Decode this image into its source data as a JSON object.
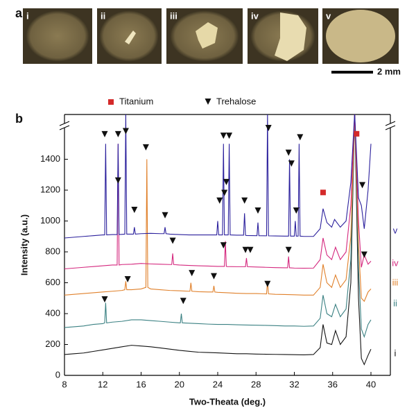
{
  "panel_a": {
    "label": "a",
    "images": [
      "i",
      "ii",
      "iii",
      "iv",
      "v"
    ],
    "scale_bar": "2 mm"
  },
  "chart_data": {
    "type": "line",
    "label": "b",
    "xlabel": "Two-Theata (deg.)",
    "ylabel": "Intensity (a.u.)",
    "xlim": [
      8,
      42
    ],
    "ylim": [
      0,
      1690
    ],
    "xticks": [
      8,
      12,
      16,
      20,
      24,
      28,
      32,
      36,
      40
    ],
    "yticks": [
      0,
      200,
      400,
      600,
      800,
      1000,
      1200,
      1400
    ],
    "series": [
      {
        "name": "i",
        "color": "#111111",
        "x": [
          8,
          9,
          10,
          11,
          12,
          13,
          14,
          15,
          16,
          17,
          18,
          19,
          20,
          21,
          22,
          23,
          24,
          25,
          26,
          27,
          28,
          29,
          30,
          31,
          32,
          33,
          34,
          34.7,
          35,
          35.4,
          35.9,
          36.3,
          36.8,
          37.4,
          37.9,
          38.3,
          38.7,
          39,
          39.3,
          39.7,
          40
        ],
        "values": [
          135,
          140,
          145,
          155,
          165,
          175,
          185,
          195,
          190,
          185,
          178,
          170,
          162,
          156,
          150,
          148,
          146,
          143,
          140,
          140,
          138,
          137,
          136,
          135,
          134,
          133,
          135,
          180,
          330,
          210,
          200,
          290,
          200,
          250,
          600,
          1700,
          500,
          110,
          70,
          130,
          170
        ]
      },
      {
        "name": "ii",
        "color": "#3a8082",
        "x": [
          8,
          9,
          10,
          11,
          12,
          12.2,
          12.3,
          12.4,
          13,
          14,
          15,
          16,
          17,
          18,
          19,
          20,
          20.1,
          20.2,
          20.3,
          21,
          22,
          23,
          24,
          25,
          26,
          27,
          28,
          29,
          30,
          31,
          32,
          33,
          34,
          34.7,
          35,
          35.4,
          35.9,
          36.3,
          36.8,
          37.4,
          37.9,
          38.3,
          38.7,
          39,
          39.3,
          39.7,
          40
        ],
        "values": [
          310,
          315,
          320,
          330,
          335,
          340,
          470,
          340,
          345,
          350,
          360,
          360,
          355,
          350,
          345,
          340,
          340,
          400,
          340,
          338,
          335,
          332,
          330,
          330,
          328,
          326,
          325,
          324,
          322,
          320,
          320,
          318,
          320,
          370,
          520,
          400,
          380,
          460,
          380,
          430,
          750,
          1700,
          700,
          300,
          250,
          330,
          360
        ]
      },
      {
        "name": "iii",
        "color": "#e0802a",
        "x": [
          8,
          9,
          10,
          11,
          12,
          13,
          14,
          14.3,
          14.4,
          14.5,
          15,
          16,
          16.5,
          16.6,
          16.7,
          17,
          18,
          19,
          20,
          21,
          21.1,
          21.2,
          21.3,
          22,
          23,
          23.5,
          23.6,
          23.7,
          24,
          25,
          26,
          27,
          28,
          29,
          29.1,
          29.2,
          29.3,
          30,
          31,
          32,
          33,
          34,
          34.7,
          35,
          35.4,
          35.9,
          36.3,
          36.8,
          37.4,
          37.9,
          38.3,
          38.7,
          39,
          39.3,
          39.7,
          40
        ],
        "values": [
          520,
          525,
          530,
          535,
          540,
          545,
          550,
          555,
          610,
          555,
          555,
          560,
          570,
          1400,
          570,
          560,
          555,
          550,
          548,
          545,
          545,
          600,
          545,
          542,
          540,
          540,
          580,
          540,
          538,
          535,
          532,
          530,
          530,
          528,
          528,
          610,
          528,
          525,
          524,
          522,
          520,
          520,
          570,
          720,
          600,
          570,
          650,
          570,
          620,
          900,
          1700,
          850,
          500,
          480,
          540,
          560
        ]
      },
      {
        "name": "iv",
        "color": "#d4267d",
        "x": [
          8,
          9,
          10,
          11,
          12,
          13,
          13.5,
          13.6,
          13.7,
          14,
          15,
          16,
          17,
          18,
          19,
          19.2,
          19.3,
          19.4,
          20,
          21,
          22,
          23,
          24,
          24.7,
          24.8,
          24.9,
          25,
          26,
          26.9,
          27,
          27.1,
          28,
          29,
          30,
          31,
          31.3,
          31.4,
          31.5,
          32,
          33,
          34,
          34.7,
          35,
          35.4,
          35.9,
          36.3,
          36.8,
          37.4,
          37.9,
          38.3,
          38.7,
          39,
          39.3,
          39.7,
          40
        ],
        "values": [
          690,
          695,
          700,
          705,
          710,
          715,
          715,
          1500,
          715,
          718,
          720,
          725,
          722,
          720,
          718,
          718,
          790,
          718,
          715,
          712,
          710,
          708,
          706,
          706,
          870,
          706,
          705,
          704,
          704,
          760,
          704,
          702,
          700,
          698,
          697,
          697,
          770,
          697,
          695,
          694,
          695,
          750,
          890,
          780,
          750,
          830,
          750,
          800,
          1100,
          1700,
          1000,
          700,
          780,
          720,
          740
        ]
      },
      {
        "name": "v",
        "color": "#2a1f9c",
        "x": [
          8,
          9,
          10,
          11,
          12,
          12.2,
          12.3,
          12.4,
          13,
          13.5,
          13.6,
          13.7,
          14.3,
          14.4,
          14.5,
          15.2,
          15.3,
          15.4,
          16,
          17,
          18,
          18.4,
          18.5,
          18.6,
          19,
          20,
          21,
          22,
          23,
          23.9,
          24,
          24.1,
          24.5,
          24.6,
          24.7,
          25.1,
          25.2,
          25.3,
          26,
          26.7,
          26.8,
          26.9,
          27,
          28.1,
          28.2,
          28.3,
          29.1,
          29.2,
          29.3,
          30,
          31,
          31.4,
          31.5,
          31.6,
          32,
          32.1,
          32.2,
          32.4,
          32.5,
          32.6,
          33,
          34,
          34.7,
          35,
          35.4,
          35.9,
          36.2,
          36.8,
          37.4,
          37.9,
          38.3,
          38.7,
          39,
          39.3,
          39.7,
          40
        ],
        "values": [
          890,
          895,
          900,
          905,
          910,
          910,
          1500,
          910,
          912,
          912,
          1500,
          912,
          915,
          1700,
          915,
          915,
          960,
          915,
          918,
          920,
          918,
          918,
          960,
          918,
          915,
          912,
          910,
          910,
          910,
          910,
          1000,
          910,
          910,
          1500,
          910,
          910,
          1500,
          910,
          908,
          908,
          1050,
          908,
          906,
          905,
          990,
          905,
          904,
          1700,
          904,
          903,
          902,
          902,
          1400,
          902,
          902,
          1000,
          902,
          902,
          1500,
          902,
          900,
          900,
          950,
          1080,
          990,
          960,
          1010,
          960,
          1000,
          1250,
          1700,
          1150,
          1100,
          950,
          1200,
          1500
        ]
      }
    ],
    "markers": [
      {
        "name": "Titanium",
        "color": "#d42a2a",
        "shape": "square",
        "points": [
          [
            35,
            1185
          ],
          [
            38.5,
            1565
          ]
        ]
      },
      {
        "name": "Trehalose",
        "color": "#111111",
        "shape": "triangle",
        "points": [
          [
            12.2,
            1560
          ],
          [
            13.6,
            1560
          ],
          [
            14.4,
            1580
          ],
          [
            15.3,
            1070
          ],
          [
            18.5,
            1035
          ],
          [
            24.2,
            1130
          ],
          [
            24.6,
            1550
          ],
          [
            25.2,
            1550
          ],
          [
            24.9,
            1250
          ],
          [
            24.7,
            1180
          ],
          [
            26.8,
            1130
          ],
          [
            28.2,
            1065
          ],
          [
            29.3,
            1600
          ],
          [
            31.4,
            1440
          ],
          [
            31.7,
            1370
          ],
          [
            32.2,
            1065
          ],
          [
            32.6,
            1540
          ],
          [
            39.1,
            1230
          ],
          [
            13.6,
            1260
          ],
          [
            19.3,
            870
          ],
          [
            24.6,
            840
          ],
          [
            26.9,
            810
          ],
          [
            27.4,
            810
          ],
          [
            31.4,
            810
          ],
          [
            39.3,
            780
          ],
          [
            14.6,
            620
          ],
          [
            16.5,
            1475
          ],
          [
            21.3,
            660
          ],
          [
            23.6,
            640
          ],
          [
            29.2,
            590
          ],
          [
            12.2,
            490
          ],
          [
            20.4,
            480
          ]
        ]
      }
    ]
  }
}
